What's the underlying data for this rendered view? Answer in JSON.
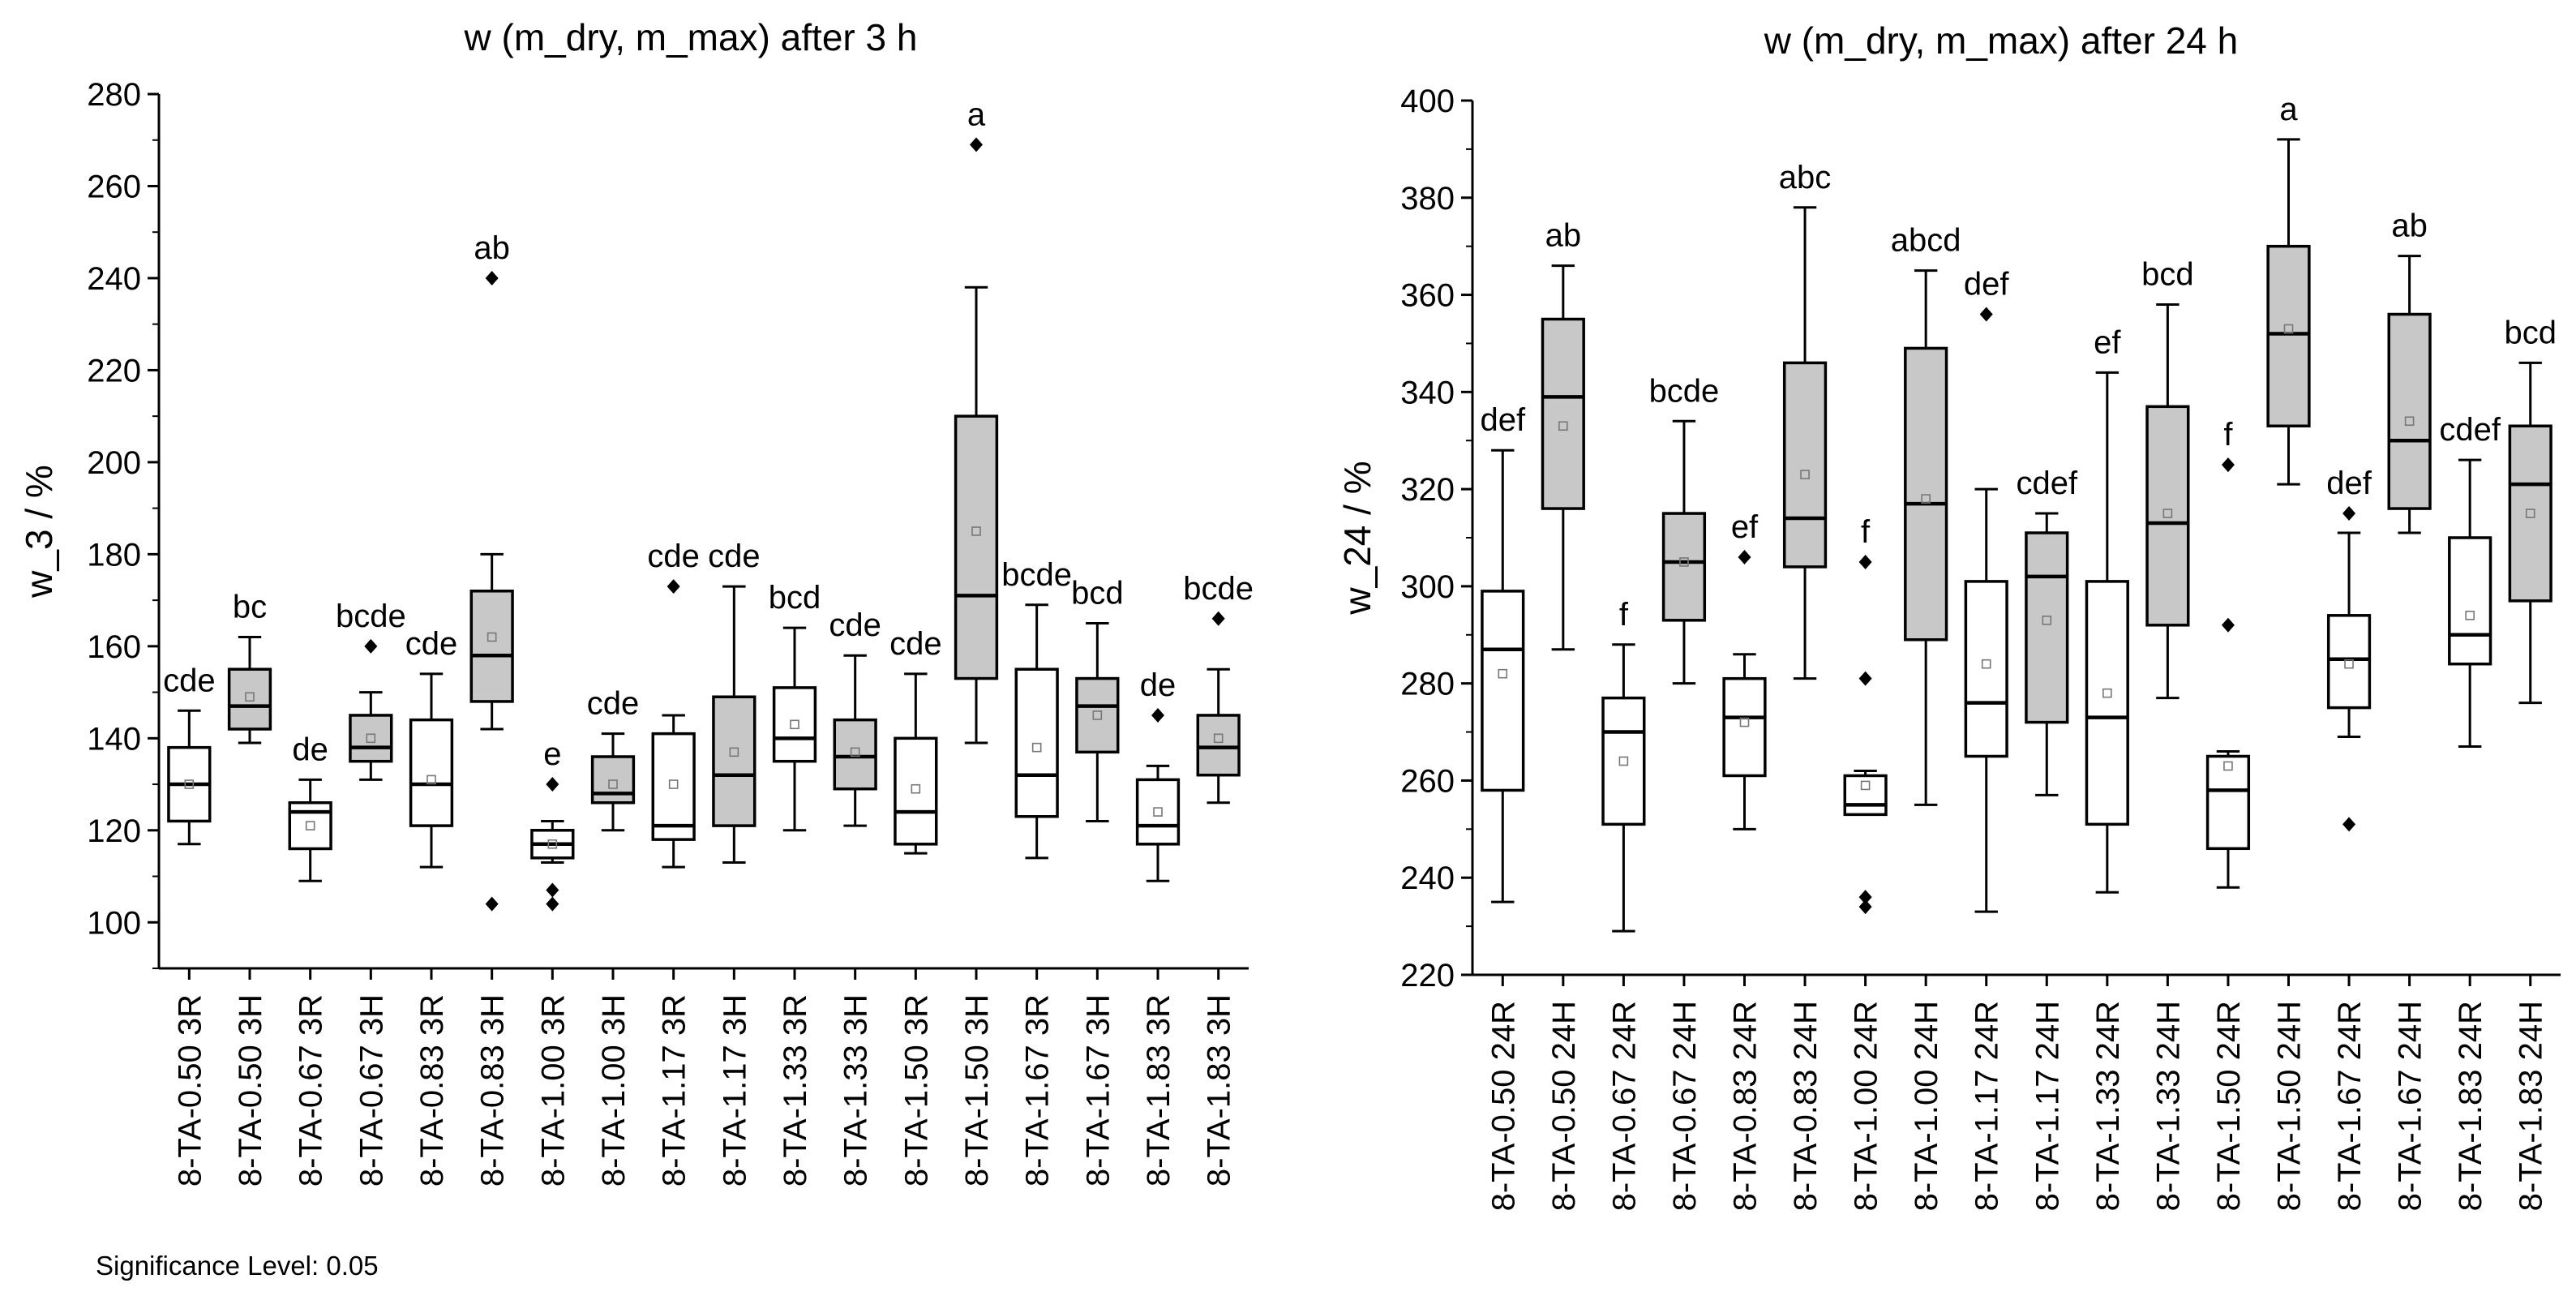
{
  "footnote": "Significance Level: 0.05",
  "colors": {
    "fill_R": "#ffffff",
    "fill_H": "#c8c8c8",
    "stroke": "#000000",
    "mean_marker": "#777777"
  },
  "chart_data": [
    {
      "type": "box",
      "title": "w (m_dry, m_max) after 3 h",
      "xlabel": "",
      "ylabel": "w_3 / %",
      "ylim": [
        90,
        280
      ],
      "yticks": [
        100,
        120,
        140,
        160,
        180,
        200,
        220,
        240,
        260,
        280
      ],
      "categories": [
        "8-TA-0.50 3R",
        "8-TA-0.50 3H",
        "8-TA-0.67 3R",
        "8-TA-0.67 3H",
        "8-TA-0.83 3R",
        "8-TA-0.83 3H",
        "8-TA-1.00 3R",
        "8-TA-1.00 3H",
        "8-TA-1.17 3R",
        "8-TA-1.17 3H",
        "8-TA-1.33 3R",
        "8-TA-1.33 3H",
        "8-TA-1.50 3R",
        "8-TA-1.50 3H",
        "8-TA-1.67 3R",
        "8-TA-1.67 3H",
        "8-TA-1.83 3R",
        "8-TA-1.83 3H"
      ],
      "series": [
        {
          "name": "8-TA-0.50 3R",
          "fill": "R",
          "whisker_low": 117,
          "q1": 122,
          "median": 130,
          "q3": 138,
          "whisker_high": 146,
          "mean": 130,
          "outliers": [],
          "label": "cde"
        },
        {
          "name": "8-TA-0.50 3H",
          "fill": "H",
          "whisker_low": 139,
          "q1": 142,
          "median": 147,
          "q3": 155,
          "whisker_high": 162,
          "mean": 149,
          "outliers": [],
          "label": "bc"
        },
        {
          "name": "8-TA-0.67 3R",
          "fill": "R",
          "whisker_low": 109,
          "q1": 116,
          "median": 124,
          "q3": 126,
          "whisker_high": 131,
          "mean": 121,
          "outliers": [],
          "label": "de"
        },
        {
          "name": "8-TA-0.67 3H",
          "fill": "H",
          "whisker_low": 131,
          "q1": 135,
          "median": 138,
          "q3": 145,
          "whisker_high": 150,
          "mean": 140,
          "outliers": [
            160
          ],
          "label": "bcde"
        },
        {
          "name": "8-TA-0.83 3R",
          "fill": "R",
          "whisker_low": 112,
          "q1": 121,
          "median": 130,
          "q3": 144,
          "whisker_high": 154,
          "mean": 131,
          "outliers": [],
          "label": "cde"
        },
        {
          "name": "8-TA-0.83 3H",
          "fill": "H",
          "whisker_low": 142,
          "q1": 148,
          "median": 158,
          "q3": 172,
          "whisker_high": 180,
          "mean": 162,
          "outliers": [
            240,
            104
          ],
          "label": "ab"
        },
        {
          "name": "8-TA-1.00 3R",
          "fill": "R",
          "whisker_low": 113,
          "q1": 114,
          "median": 117,
          "q3": 120,
          "whisker_high": 122,
          "mean": 117,
          "outliers": [
            130,
            107,
            104
          ],
          "label": "e"
        },
        {
          "name": "8-TA-1.00 3H",
          "fill": "H",
          "whisker_low": 120,
          "q1": 126,
          "median": 128,
          "q3": 136,
          "whisker_high": 141,
          "mean": 130,
          "outliers": [],
          "label": "cde"
        },
        {
          "name": "8-TA-1.17 3R",
          "fill": "R",
          "whisker_low": 112,
          "q1": 118,
          "median": 121,
          "q3": 141,
          "whisker_high": 145,
          "mean": 130,
          "outliers": [
            173
          ],
          "label": "cde"
        },
        {
          "name": "8-TA-1.17 3H",
          "fill": "H",
          "whisker_low": 113,
          "q1": 121,
          "median": 132,
          "q3": 149,
          "whisker_high": 173,
          "mean": 137,
          "outliers": [],
          "label": "cde"
        },
        {
          "name": "8-TA-1.33 3R",
          "fill": "R",
          "whisker_low": 120,
          "q1": 135,
          "median": 140,
          "q3": 151,
          "whisker_high": 164,
          "mean": 143,
          "outliers": [],
          "label": "bcd"
        },
        {
          "name": "8-TA-1.33 3H",
          "fill": "H",
          "whisker_low": 121,
          "q1": 129,
          "median": 136,
          "q3": 144,
          "whisker_high": 158,
          "mean": 137,
          "outliers": [],
          "label": "cde"
        },
        {
          "name": "8-TA-1.50 3R",
          "fill": "R",
          "whisker_low": 115,
          "q1": 117,
          "median": 124,
          "q3": 140,
          "whisker_high": 154,
          "mean": 129,
          "outliers": [],
          "label": "cde"
        },
        {
          "name": "8-TA-1.50 3H",
          "fill": "H",
          "whisker_low": 139,
          "q1": 153,
          "median": 171,
          "q3": 210,
          "whisker_high": 238,
          "mean": 185,
          "outliers": [
            269
          ],
          "label": "a"
        },
        {
          "name": "8-TA-1.67 3R",
          "fill": "R",
          "whisker_low": 114,
          "q1": 123,
          "median": 132,
          "q3": 155,
          "whisker_high": 169,
          "mean": 138,
          "outliers": [],
          "label": "bcde"
        },
        {
          "name": "8-TA-1.67 3H",
          "fill": "H",
          "whisker_low": 122,
          "q1": 137,
          "median": 147,
          "q3": 153,
          "whisker_high": 165,
          "mean": 145,
          "outliers": [],
          "label": "bcd"
        },
        {
          "name": "8-TA-1.83 3R",
          "fill": "R",
          "whisker_low": 109,
          "q1": 117,
          "median": 121,
          "q3": 131,
          "whisker_high": 134,
          "mean": 124,
          "outliers": [
            145
          ],
          "label": "de"
        },
        {
          "name": "8-TA-1.83 3H",
          "fill": "H",
          "whisker_low": 126,
          "q1": 132,
          "median": 138,
          "q3": 145,
          "whisker_high": 155,
          "mean": 140,
          "outliers": [
            166
          ],
          "label": "bcde"
        }
      ]
    },
    {
      "type": "box",
      "title": "w (m_dry, m_max) after 24 h",
      "xlabel": "",
      "ylabel": "w_24 / %",
      "ylim": [
        220,
        400
      ],
      "yticks": [
        220,
        240,
        260,
        280,
        300,
        320,
        340,
        360,
        380,
        400
      ],
      "categories": [
        "8-TA-0.50 24R",
        "8-TA-0.50 24H",
        "8-TA-0.67 24R",
        "8-TA-0.67 24H",
        "8-TA-0.83 24R",
        "8-TA-0.83 24H",
        "8-TA-1.00 24R",
        "8-TA-1.00 24H",
        "8-TA-1.17 24R",
        "8-TA-1.17 24H",
        "8-TA-1.33 24R",
        "8-TA-1.33 24H",
        "8-TA-1.50 24R",
        "8-TA-1.50 24H",
        "8-TA-1.67 24R",
        "8-TA-1.67 24H",
        "8-TA-1.83 24R",
        "8-TA-1.83 24H"
      ],
      "series": [
        {
          "name": "8-TA-0.50 24R",
          "fill": "R",
          "whisker_low": 235,
          "q1": 258,
          "median": 287,
          "q3": 299,
          "whisker_high": 328,
          "mean": 282,
          "outliers": [],
          "label": "def"
        },
        {
          "name": "8-TA-0.50 24H",
          "fill": "H",
          "whisker_low": 287,
          "q1": 316,
          "median": 339,
          "q3": 355,
          "whisker_high": 366,
          "mean": 333,
          "outliers": [],
          "label": "ab"
        },
        {
          "name": "8-TA-0.67 24R",
          "fill": "R",
          "whisker_low": 229,
          "q1": 251,
          "median": 270,
          "q3": 277,
          "whisker_high": 288,
          "mean": 264,
          "outliers": [],
          "label": "f"
        },
        {
          "name": "8-TA-0.67 24H",
          "fill": "H",
          "whisker_low": 280,
          "q1": 293,
          "median": 305,
          "q3": 315,
          "whisker_high": 334,
          "mean": 305,
          "outliers": [],
          "label": "bcde"
        },
        {
          "name": "8-TA-0.83 24R",
          "fill": "R",
          "whisker_low": 250,
          "q1": 261,
          "median": 273,
          "q3": 281,
          "whisker_high": 286,
          "mean": 272,
          "outliers": [
            306
          ],
          "label": "ef"
        },
        {
          "name": "8-TA-0.83 24H",
          "fill": "H",
          "whisker_low": 281,
          "q1": 304,
          "median": 314,
          "q3": 346,
          "whisker_high": 378,
          "mean": 323,
          "outliers": [],
          "label": "abc"
        },
        {
          "name": "8-TA-1.00 24R",
          "fill": "R",
          "whisker_low": 253,
          "q1": 253,
          "median": 255,
          "q3": 261,
          "whisker_high": 262,
          "mean": 259,
          "outliers": [
            305,
            281,
            236,
            234
          ],
          "label": "f"
        },
        {
          "name": "8-TA-1.00 24H",
          "fill": "H",
          "whisker_low": 255,
          "q1": 289,
          "median": 317,
          "q3": 349,
          "whisker_high": 365,
          "mean": 318,
          "outliers": [],
          "label": "abcd"
        },
        {
          "name": "8-TA-1.17 24R",
          "fill": "R",
          "whisker_low": 233,
          "q1": 265,
          "median": 276,
          "q3": 301,
          "whisker_high": 320,
          "mean": 284,
          "outliers": [
            356
          ],
          "label": "def"
        },
        {
          "name": "8-TA-1.17 24H",
          "fill": "H",
          "whisker_low": 257,
          "q1": 272,
          "median": 302,
          "q3": 311,
          "whisker_high": 315,
          "mean": 293,
          "outliers": [],
          "label": "cdef"
        },
        {
          "name": "8-TA-1.33 24R",
          "fill": "R",
          "whisker_low": 237,
          "q1": 251,
          "median": 273,
          "q3": 301,
          "whisker_high": 344,
          "mean": 278,
          "outliers": [],
          "label": "ef"
        },
        {
          "name": "8-TA-1.33 24H",
          "fill": "H",
          "whisker_low": 277,
          "q1": 292,
          "median": 313,
          "q3": 337,
          "whisker_high": 358,
          "mean": 315,
          "outliers": [],
          "label": "bcd"
        },
        {
          "name": "8-TA-1.50 24R",
          "fill": "R",
          "whisker_low": 238,
          "q1": 246,
          "median": 258,
          "q3": 265,
          "whisker_high": 266,
          "mean": 263,
          "outliers": [
            325,
            292
          ],
          "label": "f"
        },
        {
          "name": "8-TA-1.50 24H",
          "fill": "H",
          "whisker_low": 321,
          "q1": 333,
          "median": 352,
          "q3": 370,
          "whisker_high": 392,
          "mean": 353,
          "outliers": [],
          "label": "a"
        },
        {
          "name": "8-TA-1.67 24R",
          "fill": "R",
          "whisker_low": 269,
          "q1": 275,
          "median": 285,
          "q3": 294,
          "whisker_high": 311,
          "mean": 284,
          "outliers": [
            315,
            251
          ],
          "label": "def"
        },
        {
          "name": "8-TA-1.67 24H",
          "fill": "H",
          "whisker_low": 311,
          "q1": 316,
          "median": 330,
          "q3": 356,
          "whisker_high": 368,
          "mean": 334,
          "outliers": [],
          "label": "ab"
        },
        {
          "name": "8-TA-1.83 24R",
          "fill": "R",
          "whisker_low": 267,
          "q1": 284,
          "median": 290,
          "q3": 310,
          "whisker_high": 326,
          "mean": 294,
          "outliers": [],
          "label": "cdef"
        },
        {
          "name": "8-TA-1.83 24H",
          "fill": "H",
          "whisker_low": 276,
          "q1": 297,
          "median": 321,
          "q3": 333,
          "whisker_high": 346,
          "mean": 315,
          "outliers": [],
          "label": "bcd"
        }
      ]
    }
  ]
}
